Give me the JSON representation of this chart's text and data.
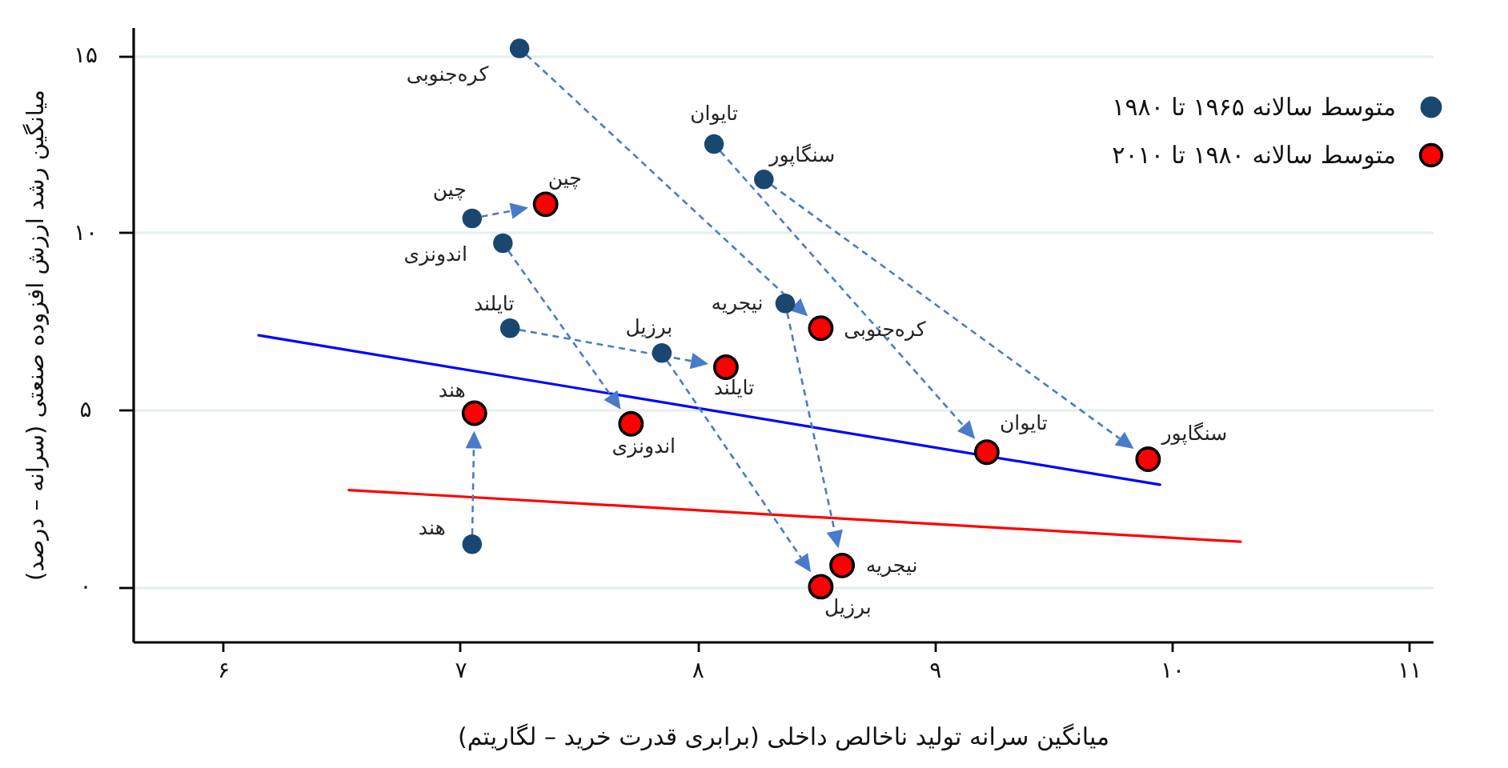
{
  "chart_data": {
    "type": "scatter",
    "xlabel": "میانگین سرانه تولید ناخالص داخلی (برابری قدرت خرید – لگاریتم)",
    "ylabel": "میانگین رشد ارزش افزوده صنعتی (سرانه – درصد)",
    "xlim": [
      5.62,
      11.1
    ],
    "xticks": [
      {
        "value": 6,
        "label": "۶"
      },
      {
        "value": 7,
        "label": "۷"
      },
      {
        "value": 8,
        "label": "۸"
      },
      {
        "value": 9,
        "label": "۹"
      },
      {
        "value": 10,
        "label": "۱۰"
      },
      {
        "value": 11,
        "label": "۱۱"
      }
    ],
    "ylim": [
      -1.55,
      15.8
    ],
    "yticks": [
      {
        "value": 0,
        "label": "۰"
      },
      {
        "value": 5,
        "label": "۵"
      },
      {
        "value": 10,
        "label": "۱۰"
      },
      {
        "value": 15,
        "label": "۱۵"
      }
    ],
    "grid": "y",
    "legend": "top right",
    "marker": "circle",
    "series": [
      {
        "name": "متوسط سالانه ۱۹۶۵ تا ۱۹۸۰",
        "color": "#1a476f",
        "x": [
          7.25,
          8.07,
          8.28,
          7.05,
          7.18,
          7.21,
          7.85,
          8.37,
          7.05
        ],
        "values": [
          15.2,
          12.5,
          11.5,
          10.4,
          9.7,
          7.3,
          6.6,
          8.0,
          1.2
        ]
      },
      {
        "name": "متوسط سالانه ۱۹۸۰ تا ۲۰۱۰",
        "color": "#ff0000",
        "x": [
          8.52,
          9.22,
          9.9,
          7.36,
          7.72,
          8.12,
          8.52,
          8.61,
          7.06
        ],
        "values": [
          7.3,
          3.8,
          3.6,
          10.8,
          4.6,
          6.2,
          0,
          0.6,
          4.9
        ]
      },
      {
        "type": "line",
        "marker": "none",
        "color": "#0000ff",
        "x": [
          6.15,
          9.95
        ],
        "values": [
          7.1,
          2.88
        ]
      },
      {
        "type": "line",
        "marker": "none",
        "color": "#ff0000",
        "x": [
          6.53,
          10.29
        ],
        "values": [
          2.73,
          1.27
        ]
      }
    ],
    "annotations": [
      {
        "text": "کره‌جنوبی",
        "x": 7.25,
        "y": 15.2
      },
      {
        "text": "تایوان",
        "x": 8.07,
        "y": 12.5
      },
      {
        "text": "سنگاپور",
        "x": 8.28,
        "y": 11.5
      },
      {
        "text": "چین",
        "x": 7.05,
        "y": 10.4
      },
      {
        "text": "اندونزی",
        "x": 7.18,
        "y": 9.7
      },
      {
        "text": "تایلند",
        "x": 7.21,
        "y": 7.3
      },
      {
        "text": "برزیل",
        "x": 7.85,
        "y": 6.6
      },
      {
        "text": "نیجریه",
        "x": 8.37,
        "y": 8.0
      },
      {
        "text": "هند",
        "x": 7.05,
        "y": 1.2
      },
      {
        "text": "کره‌جنوبی",
        "x": 8.52,
        "y": 7.3
      },
      {
        "text": "تایوان",
        "x": 9.22,
        "y": 3.8
      },
      {
        "text": "سنگاپور",
        "x": 9.9,
        "y": 3.6
      },
      {
        "text": "چین",
        "x": 7.36,
        "y": 10.8
      },
      {
        "text": "اندونزی",
        "x": 7.72,
        "y": 4.6
      },
      {
        "text": "تایلند",
        "x": 8.12,
        "y": 6.2
      },
      {
        "text": "برزیل",
        "x": 8.52,
        "y": 0
      },
      {
        "text": "نیجریه",
        "x": 8.61,
        "y": 0.6
      },
      {
        "text": "هند",
        "x": 7.06,
        "y": 4.9
      }
    ]
  }
}
